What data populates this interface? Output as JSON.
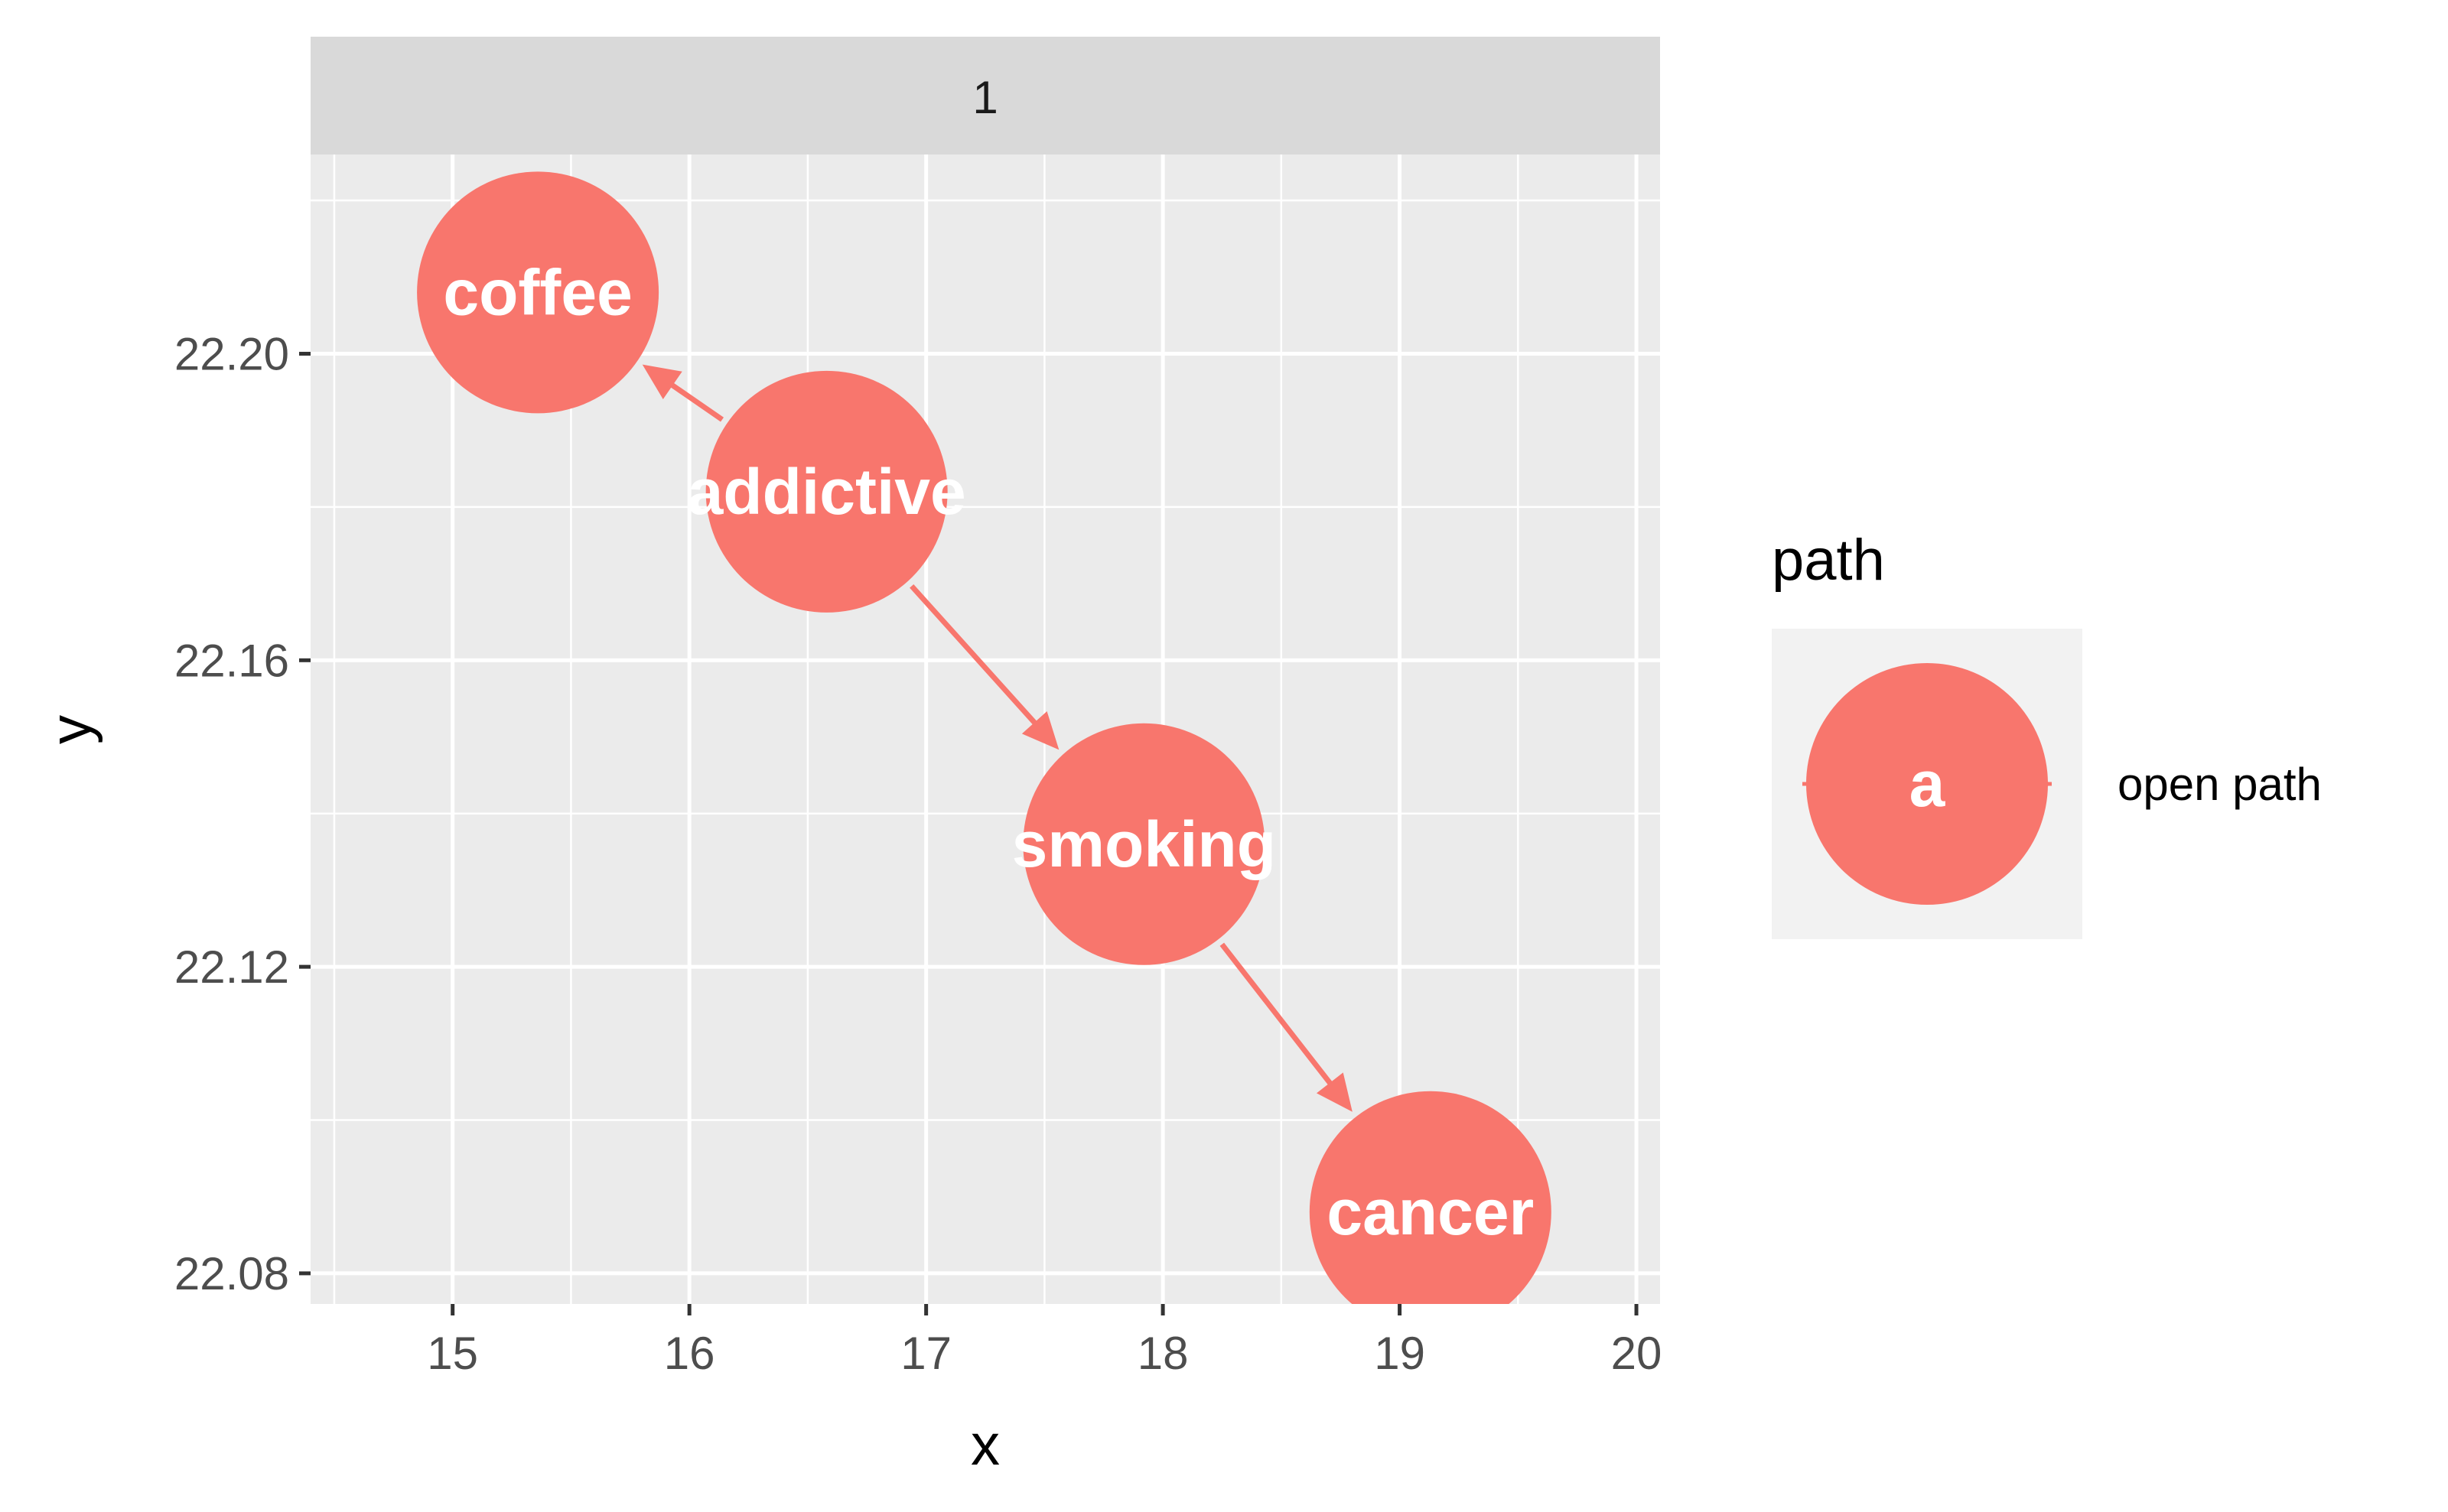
{
  "chart_data": {
    "type": "scatter",
    "facet_label": "1",
    "xlabel": "x",
    "ylabel": "y",
    "xlim": [
      14.4,
      20.1
    ],
    "ylim": [
      22.076,
      22.226
    ],
    "x_ticks": [
      15,
      16,
      17,
      18,
      19,
      20
    ],
    "x_tick_labels": [
      "15",
      "16",
      "17",
      "18",
      "19",
      "20"
    ],
    "y_ticks": [
      22.08,
      22.12,
      22.16,
      22.2
    ],
    "y_tick_labels": [
      "22.08",
      "22.12",
      "22.16",
      "22.20"
    ],
    "grid": true,
    "nodes": [
      {
        "name": "coffee",
        "x": 15.36,
        "y": 22.208
      },
      {
        "name": "addictive",
        "x": 16.58,
        "y": 22.182
      },
      {
        "name": "smoking",
        "x": 17.92,
        "y": 22.136
      },
      {
        "name": "cancer",
        "x": 19.13,
        "y": 22.088
      }
    ],
    "edges": [
      {
        "from": "addictive",
        "to": "coffee"
      },
      {
        "from": "addictive",
        "to": "smoking"
      },
      {
        "from": "smoking",
        "to": "cancer"
      }
    ],
    "legend": {
      "title": "path",
      "placement": "right",
      "key_label": "a",
      "entry": "open path"
    },
    "colors": {
      "node": "#f8766d",
      "panel": "#ebebeb",
      "strip": "#d9d9d9",
      "legend_key_bg": "#f2f2f2"
    }
  }
}
